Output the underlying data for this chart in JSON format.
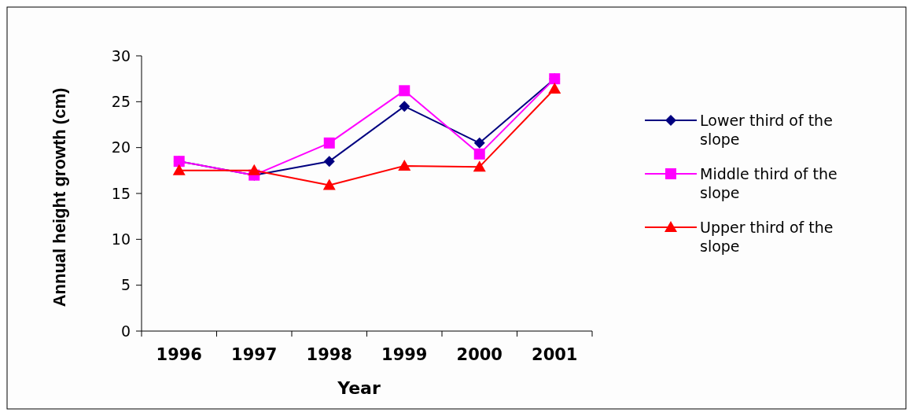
{
  "chart_data": {
    "type": "line",
    "xlabel": "Year",
    "ylabel": "Annual height growth (cm)",
    "categories": [
      "1996",
      "1997",
      "1998",
      "1999",
      "2000",
      "2001"
    ],
    "ylim": [
      0,
      30
    ],
    "yticks": [
      0,
      5,
      10,
      15,
      20,
      25,
      30
    ],
    "grid": false,
    "legend": "right",
    "line_style": "solid",
    "series": [
      {
        "name": "Lower third of the slope",
        "color": "#000080",
        "marker": "diamond",
        "values": [
          18.5,
          17,
          18.5,
          24.5,
          20.5,
          27.5
        ]
      },
      {
        "name": "Middle third of the slope",
        "color": "#ff00ff",
        "marker": "square",
        "values": [
          18.5,
          17,
          20.5,
          26.2,
          19.3,
          27.5
        ]
      },
      {
        "name": "Upper third of the slope",
        "color": "#ff0000",
        "marker": "triangle",
        "values": [
          17.5,
          17.5,
          15.9,
          18,
          17.9,
          26.4
        ]
      }
    ]
  }
}
